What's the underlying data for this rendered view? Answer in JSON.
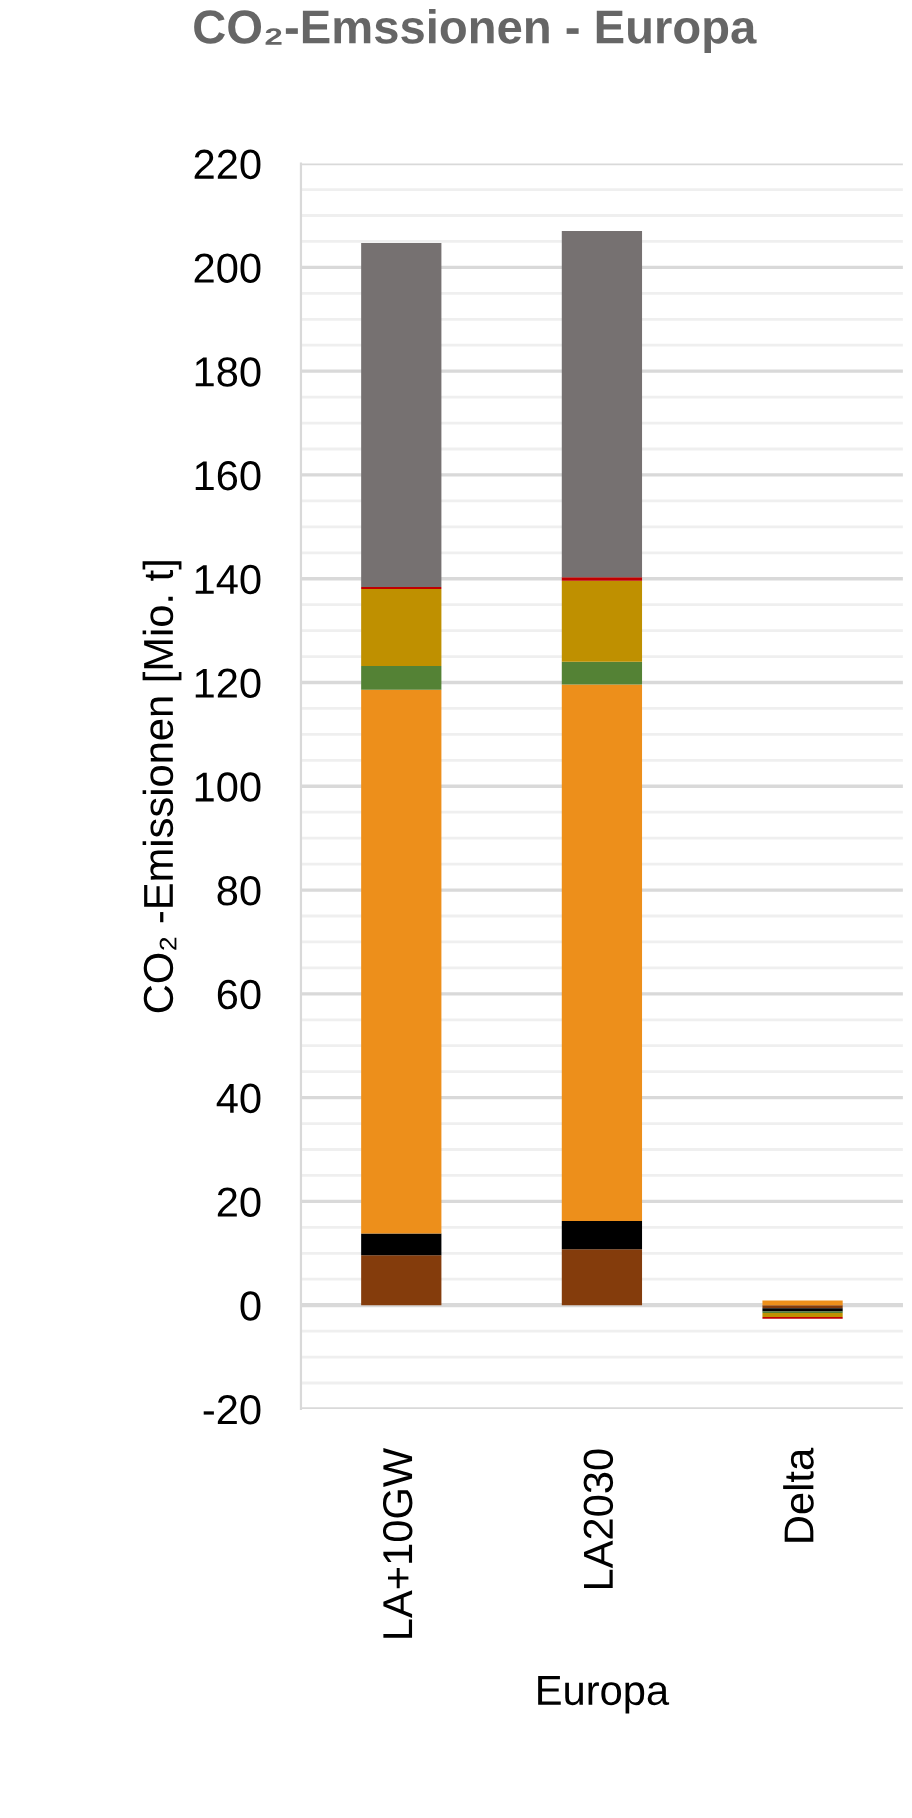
{
  "chart_data": {
    "type": "bar",
    "stacked": true,
    "title": "CO₂-Emssionen - Europa",
    "ylabel": "CO₂ -Emissionen [Mio. t]",
    "xlabel": "Europa",
    "categories": [
      "LA+10GW",
      "LA2030",
      "Delta"
    ],
    "series": [
      {
        "color": "#843c0c",
        "values": [
          9.6,
          10.8,
          -0.6
        ]
      },
      {
        "color": "#000000",
        "values": [
          4.2,
          5.4,
          -0.6
        ]
      },
      {
        "color": "#ed8f1b",
        "values": [
          104.8,
          103.4,
          0.9
        ]
      },
      {
        "color": "#548235",
        "values": [
          4.6,
          4.4,
          -0.3
        ]
      },
      {
        "color": "#bf9000",
        "values": [
          14.8,
          15.6,
          -0.8
        ]
      },
      {
        "color": "#c00000",
        "values": [
          0.4,
          0.7,
          -0.3
        ]
      },
      {
        "color": "#767171",
        "values": [
          66.3,
          66.7,
          0
        ]
      }
    ],
    "ylim": [
      -20,
      220
    ],
    "yticks": [
      -20,
      0,
      20,
      40,
      60,
      80,
      100,
      120,
      140,
      160,
      180,
      200,
      220
    ],
    "grid": "y"
  }
}
